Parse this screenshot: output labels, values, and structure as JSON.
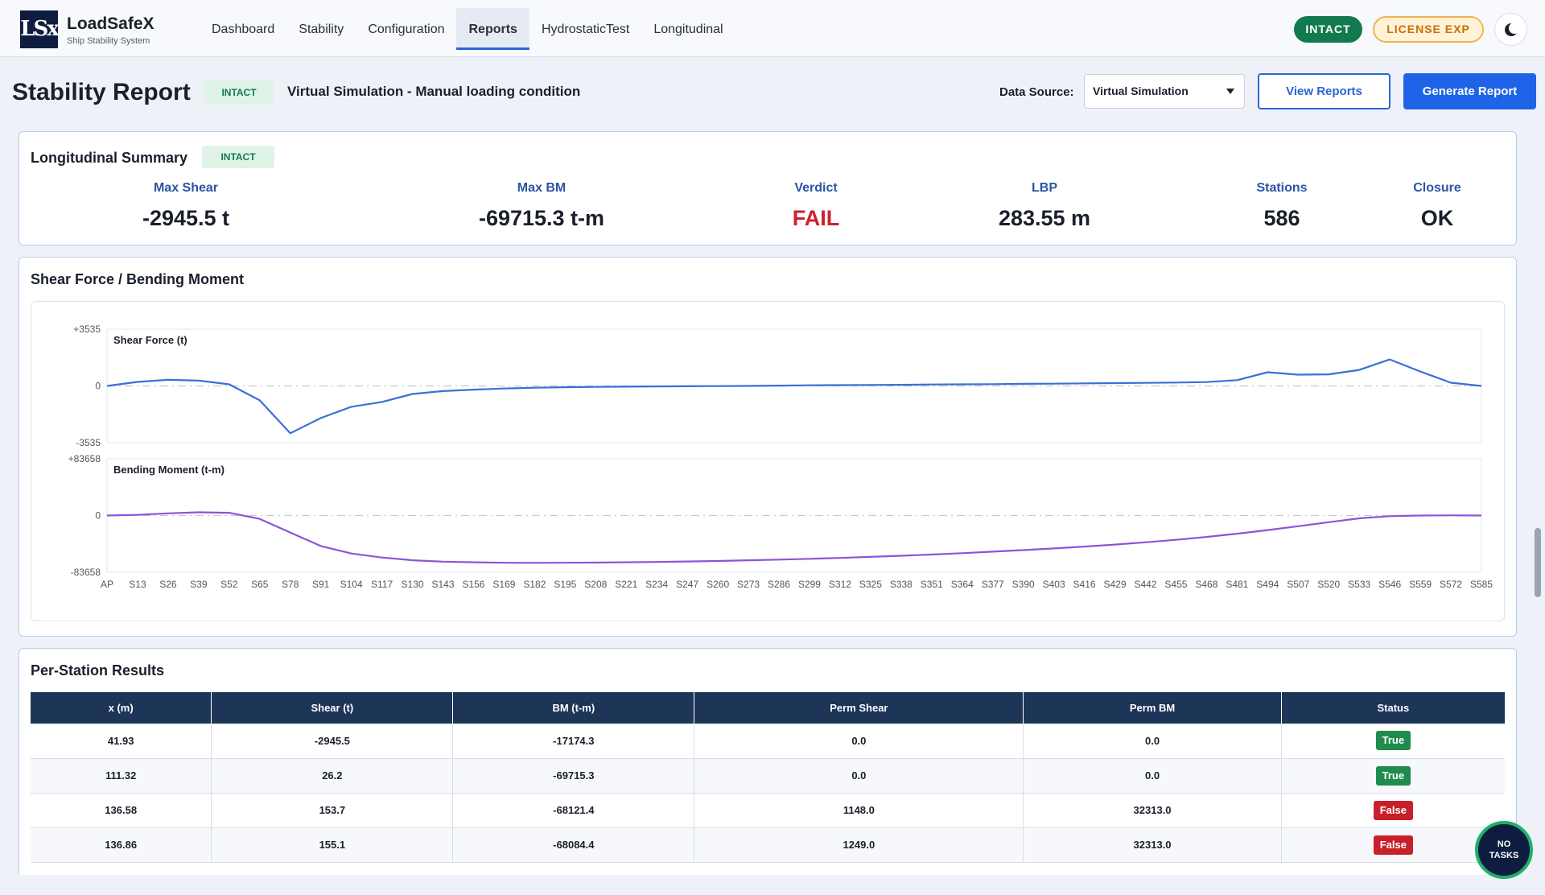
{
  "app": {
    "logo_text": "LSx",
    "name": "LoadSafeX",
    "subtitle": "Ship Stability System"
  },
  "nav": {
    "items": [
      "Dashboard",
      "Stability",
      "Configuration",
      "Reports",
      "HydrostaticTest",
      "Longitudinal"
    ],
    "active": "Reports"
  },
  "topbar": {
    "status_pill": "INTACT",
    "license_pill": "LICENSE EXP",
    "theme_icon": "moon-icon"
  },
  "header": {
    "title": "Stability Report",
    "badge": "INTACT",
    "condition": "Virtual Simulation - Manual loading condition",
    "data_source_label": "Data Source:",
    "data_source_value": "Virtual Simulation",
    "view_reports": "View Reports",
    "generate_report": "Generate Report"
  },
  "summary": {
    "title": "Longitudinal Summary",
    "badge": "INTACT",
    "metrics": [
      {
        "label": "Max Shear",
        "value": "-2945.5 t"
      },
      {
        "label": "Max BM",
        "value": "-69715.3 t-m"
      },
      {
        "label": "Verdict",
        "value": "FAIL"
      },
      {
        "label": "LBP",
        "value": "283.55 m"
      },
      {
        "label": "Stations",
        "value": "586"
      },
      {
        "label": "Closure",
        "value": "OK"
      }
    ]
  },
  "chart_card": {
    "title": "Shear Force / Bending Moment"
  },
  "chart_data": [
    {
      "type": "line",
      "ylabel": "Shear Force (t)",
      "ylim": [
        -3535,
        3535
      ],
      "yticks": [
        "+3535",
        "0",
        "-3535"
      ],
      "x": [
        "AP",
        "S13",
        "S26",
        "S39",
        "S52",
        "S65",
        "S78",
        "S91",
        "S104",
        "S117",
        "S130",
        "S143",
        "S156",
        "S169",
        "S182",
        "S195",
        "S208",
        "S221",
        "S234",
        "S247",
        "S260",
        "S273",
        "S286",
        "S299",
        "S312",
        "S325",
        "S338",
        "S351",
        "S364",
        "S377",
        "S390",
        "S403",
        "S416",
        "S429",
        "S442",
        "S455",
        "S468",
        "S481",
        "S494",
        "S507",
        "S520",
        "S533",
        "S546",
        "S559",
        "S572",
        "S585"
      ],
      "series": [
        {
          "color": "#3a6fd8",
          "values": [
            0,
            250,
            380,
            330,
            100,
            -900,
            -2946,
            -2000,
            -1300,
            -1000,
            -500,
            -320,
            -230,
            -160,
            -110,
            -80,
            -60,
            -45,
            -30,
            -20,
            -10,
            0,
            20,
            40,
            50,
            60,
            70,
            90,
            100,
            110,
            130,
            140,
            160,
            175,
            190,
            210,
            240,
            360,
            850,
            700,
            720,
            1000,
            1650,
            900,
            200,
            0
          ]
        }
      ]
    },
    {
      "type": "line",
      "ylabel": "Bending Moment (t-m)",
      "ylim": [
        -83658,
        83658
      ],
      "yticks": [
        "+83658",
        "0",
        "-83658"
      ],
      "x": [
        "AP",
        "S13",
        "S26",
        "S39",
        "S52",
        "S65",
        "S78",
        "S91",
        "S104",
        "S117",
        "S130",
        "S143",
        "S156",
        "S169",
        "S182",
        "S195",
        "S208",
        "S221",
        "S234",
        "S247",
        "S260",
        "S273",
        "S286",
        "S299",
        "S312",
        "S325",
        "S338",
        "S351",
        "S364",
        "S377",
        "S390",
        "S403",
        "S416",
        "S429",
        "S442",
        "S455",
        "S468",
        "S481",
        "S494",
        "S507",
        "S520",
        "S533",
        "S546",
        "S559",
        "S572",
        "S585"
      ],
      "series": [
        {
          "color": "#8a55d6",
          "values": [
            0,
            1000,
            3200,
            4800,
            4000,
            -5000,
            -25000,
            -45000,
            -56000,
            -62000,
            -66000,
            -68000,
            -69000,
            -69600,
            -69715,
            -69700,
            -69400,
            -69000,
            -68500,
            -67800,
            -67000,
            -66000,
            -65000,
            -63800,
            -62500,
            -61000,
            -59300,
            -57500,
            -55500,
            -53300,
            -51000,
            -48500,
            -45800,
            -42800,
            -39500,
            -35800,
            -31600,
            -26800,
            -21500,
            -15800,
            -9800,
            -4200,
            -1000,
            0,
            200,
            0
          ]
        }
      ]
    }
  ],
  "table": {
    "title": "Per-Station Results",
    "headers": [
      "x (m)",
      "Shear (t)",
      "BM (t-m)",
      "Perm Shear",
      "Perm BM",
      "Status"
    ],
    "rows": [
      [
        "41.93",
        "-2945.5",
        "-17174.3",
        "0.0",
        "0.0",
        "True"
      ],
      [
        "111.32",
        "26.2",
        "-69715.3",
        "0.0",
        "0.0",
        "True"
      ],
      [
        "136.58",
        "153.7",
        "-68121.4",
        "1148.0",
        "32313.0",
        "False"
      ],
      [
        "136.86",
        "155.1",
        "-68084.4",
        "1249.0",
        "32313.0",
        "False"
      ]
    ]
  },
  "fab": {
    "line1": "NO",
    "line2": "TASKS"
  }
}
